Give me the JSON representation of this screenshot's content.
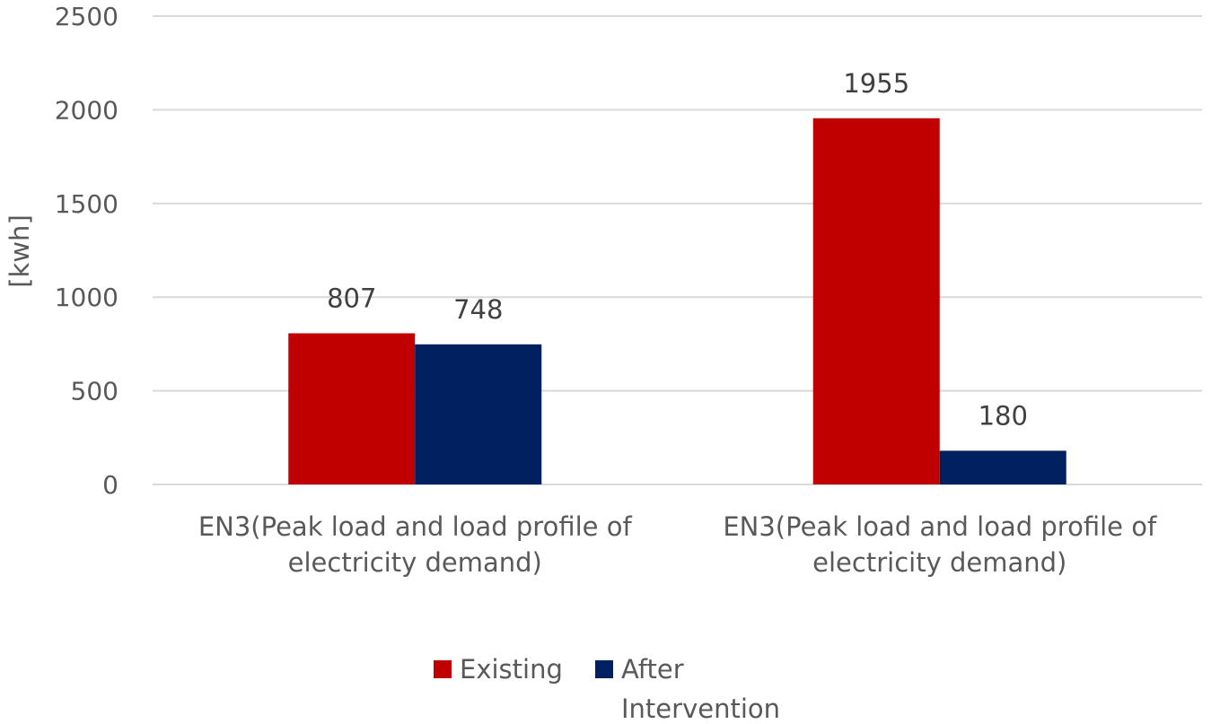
{
  "chart_data": {
    "type": "bar",
    "categories": [
      [
        "EN3(Peak load and load profile of",
        "electricity demand)"
      ],
      [
        "EN3(Peak load and load profile of",
        "electricity demand)"
      ]
    ],
    "series": [
      {
        "name": "Existing",
        "values": [
          807,
          1955
        ]
      },
      {
        "name": [
          "After",
          "Intervention"
        ],
        "values": [
          748,
          180
        ]
      }
    ],
    "ylabel": "[kwh]",
    "ylim": [
      0,
      2500
    ],
    "yticks": [
      0,
      500,
      1000,
      1500,
      2000,
      2500
    ],
    "grid": true,
    "legend": "bottom",
    "colors": {
      "Existing": "#c00000",
      "After Intervention": "#002060"
    }
  }
}
